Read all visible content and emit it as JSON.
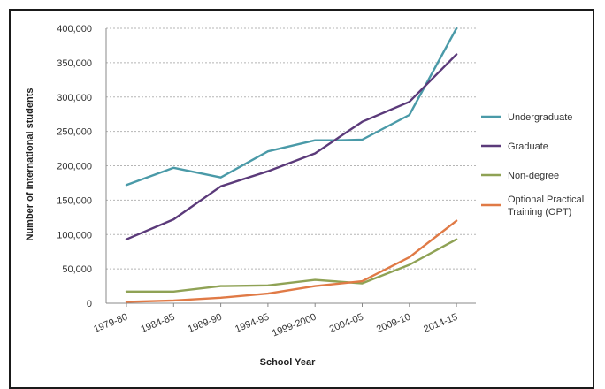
{
  "chart_data": {
    "type": "line",
    "title": "",
    "xlabel": "School Year",
    "ylabel": "Number of International students",
    "categories": [
      "1979-80",
      "1984-85",
      "1989-90",
      "1994-95",
      "1999-2000",
      "2004-05",
      "2009-10",
      "2014-15"
    ],
    "x_index": [
      0,
      1,
      2,
      3,
      4,
      5,
      6,
      7
    ],
    "ylim": [
      0,
      400000
    ],
    "yticks": [
      0,
      50000,
      100000,
      150000,
      200000,
      250000,
      300000,
      350000,
      400000
    ],
    "ytick_labels": [
      "0",
      "50,000",
      "100,000",
      "150,000",
      "200,000",
      "250,000",
      "300,000",
      "350,000",
      "400,000"
    ],
    "grid": true,
    "legend_position": "right",
    "series": [
      {
        "name": "Undergraduate",
        "color": "#4a9aa8",
        "x": [
          0,
          1,
          2,
          3,
          4,
          4.5,
          5,
          6,
          7
        ],
        "values": [
          172000,
          197000,
          183000,
          221000,
          237000,
          237000,
          238000,
          274000,
          400000
        ]
      },
      {
        "name": "Graduate",
        "color": "#5b3a7a",
        "x": [
          0,
          1,
          2,
          3,
          4,
          5,
          6,
          7
        ],
        "values": [
          93000,
          122000,
          170000,
          192000,
          218000,
          264000,
          293000,
          362000
        ]
      },
      {
        "name": "Non-degree",
        "color": "#8fa255",
        "x": [
          0,
          1,
          2,
          3,
          4,
          5,
          6,
          7
        ],
        "values": [
          17000,
          17000,
          25000,
          26000,
          34000,
          29000,
          56000,
          93000
        ]
      },
      {
        "name": "Optional Practical Training (OPT)",
        "name_lines": [
          "Optional Practical",
          "Training (OPT)"
        ],
        "color": "#e07a46",
        "x": [
          0,
          1,
          2,
          3,
          4,
          5,
          6,
          7
        ],
        "values": [
          2000,
          4000,
          8000,
          14000,
          25000,
          32000,
          67000,
          120000
        ]
      }
    ]
  }
}
